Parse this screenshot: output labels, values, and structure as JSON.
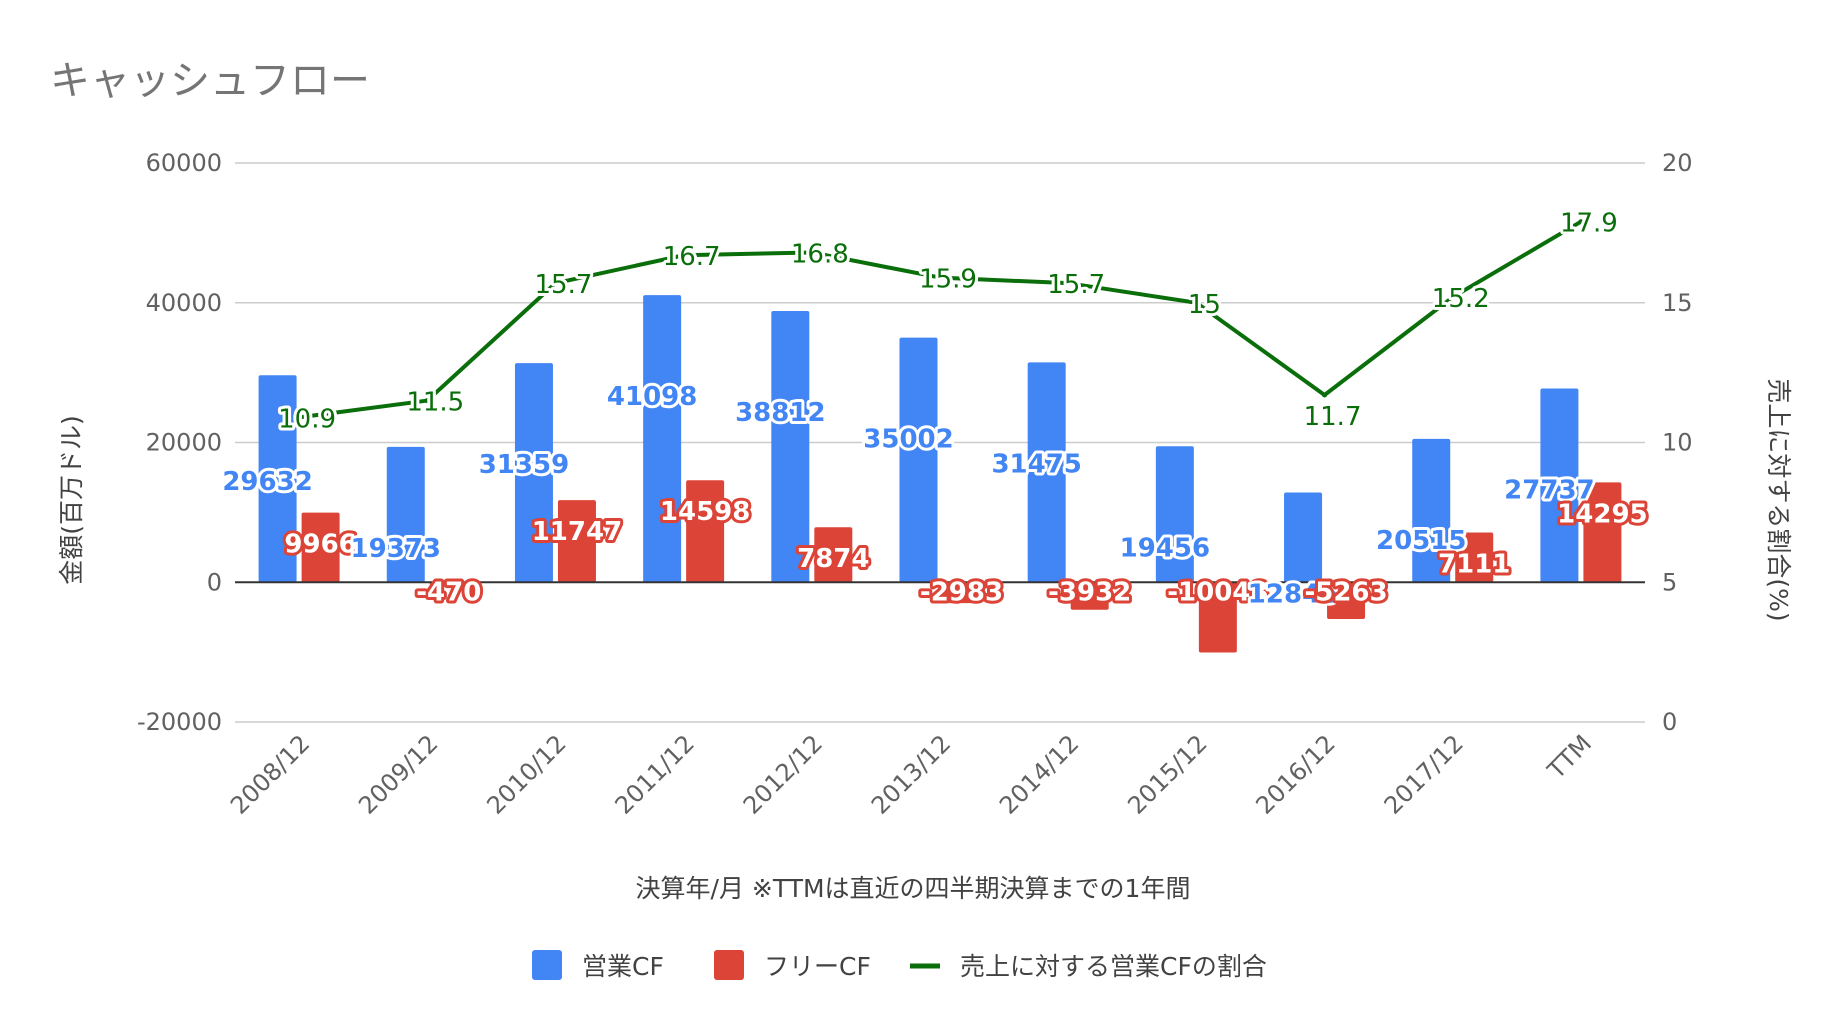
{
  "chart_data": {
    "type": "bar",
    "title": "キャッシュフロー",
    "categories": [
      "2008/12",
      "2009/12",
      "2010/12",
      "2011/12",
      "2012/12",
      "2013/12",
      "2014/12",
      "2015/12",
      "2016/12",
      "2017/12",
      "TTM"
    ],
    "series": [
      {
        "name": "営業CF",
        "type": "bar",
        "axis": "left",
        "color": "#4285f4",
        "values": [
          29632,
          19373,
          31359,
          41098,
          38812,
          35002,
          31475,
          19456,
          12846,
          20515,
          27737
        ]
      },
      {
        "name": "フリーCF",
        "type": "bar",
        "axis": "left",
        "color": "#db4437",
        "values": [
          9966,
          -470,
          11747,
          14598,
          7874,
          -2983,
          -3932,
          -10048,
          -5263,
          7111,
          14295
        ]
      },
      {
        "name": "売上に対する営業CFの割合",
        "type": "line",
        "axis": "right",
        "color": "#0a6e0a",
        "values": [
          10.9,
          11.5,
          15.7,
          16.7,
          16.8,
          15.9,
          15.7,
          15,
          11.7,
          15.2,
          17.9
        ]
      }
    ],
    "xlabel": "決算年/月 ※TTMは直近の四半期決算までの1年間",
    "ylabel": "金額(百万ドル)",
    "y2label": "売上に対する割合(%)",
    "ylim": [
      -20000,
      60000
    ],
    "y2lim": [
      0,
      20
    ],
    "yticks": [
      "-20000",
      "0",
      "20000",
      "40000",
      "60000"
    ],
    "y2ticks": [
      "0",
      "5",
      "10",
      "15",
      "20"
    ],
    "legend_position": "bottom",
    "grid": true
  }
}
